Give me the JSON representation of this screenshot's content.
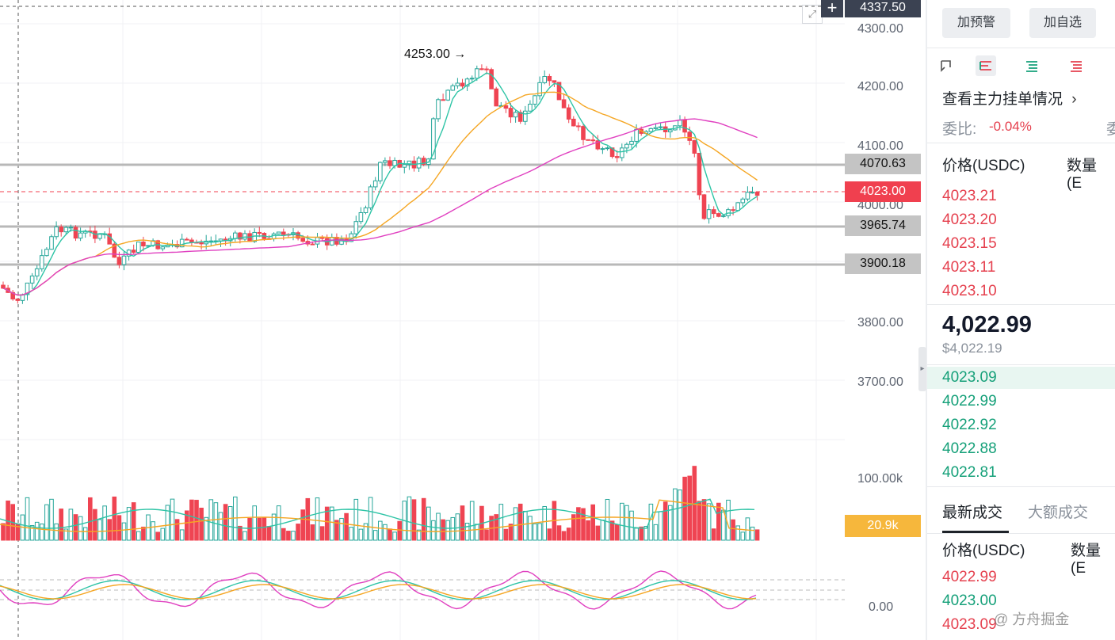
{
  "chart": {
    "price_axis_labels": [
      "4300.00",
      "4200.00",
      "4100.00",
      "4000.00",
      "3800.00",
      "3700.00"
    ],
    "volume_axis_labels": [
      "100.00k"
    ],
    "oscillator_axis_labels": [
      "0.00"
    ],
    "price_tags": {
      "crosshair": "4337.50",
      "line_upper": "4070.63",
      "current": "4023.00",
      "line_middle": "3965.74",
      "line_lower": "3900.18",
      "volume_current": "20.9k"
    },
    "high_annotation": "4253.00 →",
    "colors": {
      "up": "#26a69a",
      "down": "#ef4452",
      "ma_fast": "#2ec4a6",
      "ma_mid": "#f5a623",
      "ma_slow": "#e040c0"
    }
  },
  "panel": {
    "alert_button": "加预警",
    "watchlist_button": "加自选",
    "view_icons": [
      "order-book-both-icon",
      "order-book-default-icon",
      "order-book-bids-icon",
      "order-book-asks-icon"
    ],
    "main_orders_link": "查看主力挂单情况",
    "ratio_label": "委比:",
    "ratio_value": "-0.04%",
    "ratio_cut": "委",
    "header_price": "价格(USDC)",
    "header_qty": "数量 (E",
    "asks": [
      "4023.21",
      "4023.20",
      "4023.15",
      "4023.11",
      "4023.10"
    ],
    "last_price": "4,022.99",
    "last_price_usd": "$4,022.19",
    "bids": [
      "4023.09",
      "4022.99",
      "4022.92",
      "4022.88",
      "4022.81"
    ],
    "tab_latest": "最新成交",
    "tab_large": "大额成交",
    "trades_header_price": "价格(USDC)",
    "trades_header_qty": "数量(E",
    "trades": [
      {
        "price": "4022.99",
        "side": "sell"
      },
      {
        "price": "4023.00",
        "side": "buy"
      },
      {
        "price": "4023.09",
        "side": "sell"
      }
    ],
    "watermark": "@ 方舟掘金"
  }
}
